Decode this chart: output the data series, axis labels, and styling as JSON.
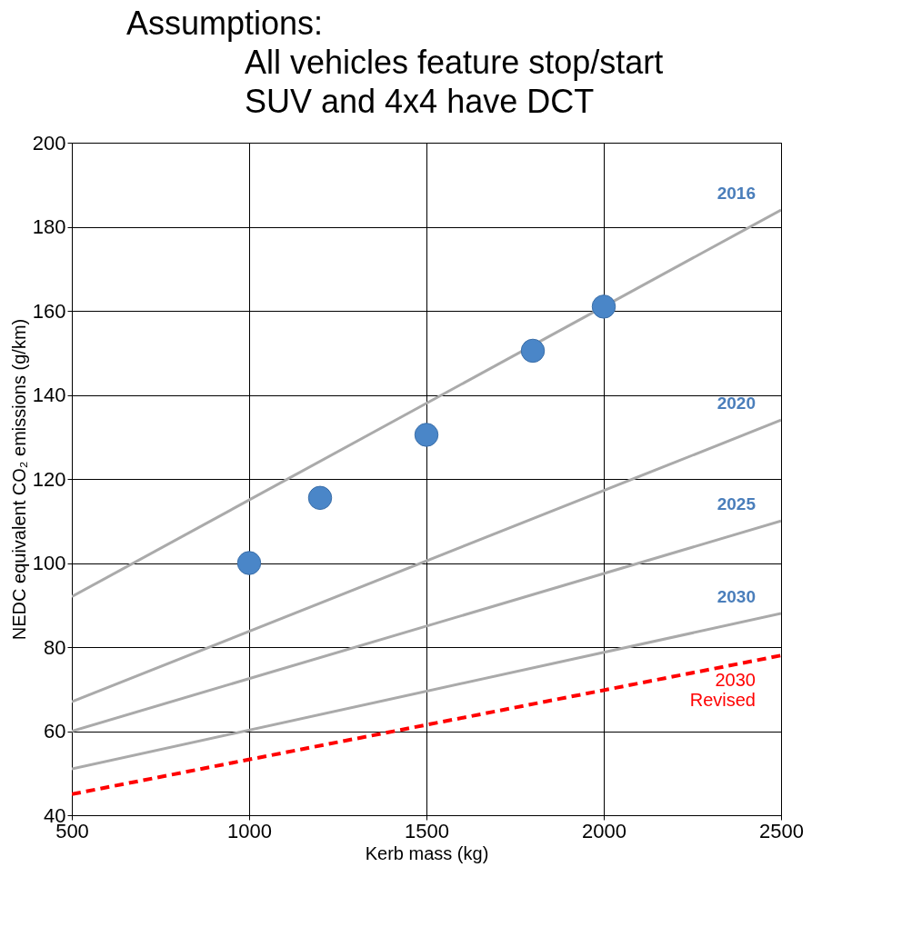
{
  "chart_data": {
    "type": "line",
    "xlabel": "Kerb mass (kg)",
    "ylabel": "NEDC equivalent CO₂ emissions (g/km)",
    "annotations": [
      "Assumptions:",
      "All vehicles feature stop/start",
      "SUV and 4x4 have DCT"
    ],
    "series": [
      {
        "name": "2016",
        "color": "#aaaaaa",
        "x": [
          500,
          2500
        ],
        "values": [
          92,
          184
        ],
        "line_style": "solid"
      },
      {
        "name": "2020",
        "color": "#aaaaaa",
        "x": [
          500,
          2500
        ],
        "values": [
          67,
          134
        ],
        "line_style": "solid"
      },
      {
        "name": "2025",
        "color": "#aaaaaa",
        "x": [
          500,
          2500
        ],
        "values": [
          60,
          110
        ],
        "line_style": "solid"
      },
      {
        "name": "2030",
        "color": "#aaaaaa",
        "x": [
          500,
          2500
        ],
        "values": [
          51,
          88
        ],
        "line_style": "solid"
      },
      {
        "name": "2030 Revised",
        "color": "#ff0000",
        "x": [
          500,
          2500
        ],
        "values": [
          45,
          78
        ],
        "line_style": "dashed"
      },
      {
        "type": "scatter",
        "color": "#4a86c8",
        "marker": "circle",
        "x": [
          1000,
          1200,
          1500,
          1800,
          2000
        ],
        "values": [
          100,
          115.5,
          130.5,
          150.5,
          161
        ]
      }
    ],
    "xlim": [
      500,
      2500
    ],
    "xticks": [
      500,
      1000,
      1500,
      2000,
      2500
    ],
    "ylim": [
      40,
      200
    ],
    "yticks": [
      40,
      60,
      80,
      100,
      120,
      140,
      160,
      180,
      200
    ],
    "grid": true,
    "legend": false
  }
}
